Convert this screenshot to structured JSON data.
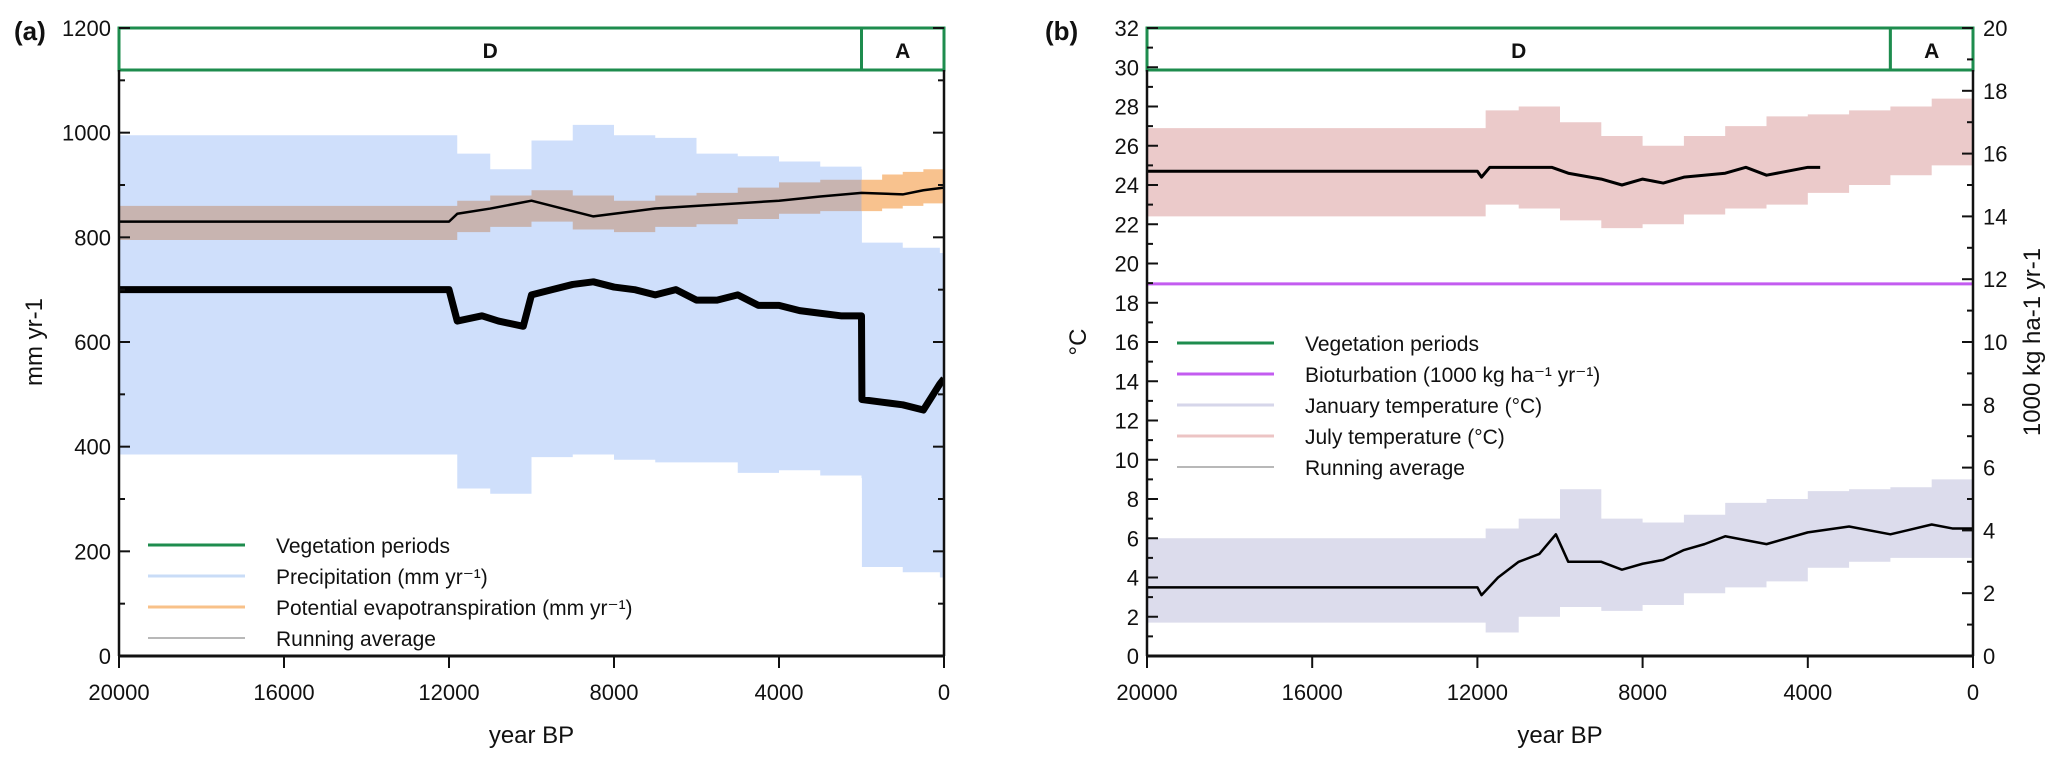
{
  "chart_data": [
    {
      "type": "area",
      "panel_label": "(a)",
      "title": "",
      "xlabel": "year BP",
      "ylabel": "mm yr-1",
      "xlim": [
        20000,
        0
      ],
      "ylim": [
        0,
        1200
      ],
      "x_ticks": [
        20000,
        16000,
        12000,
        8000,
        4000,
        0
      ],
      "x_tick_labels": [
        "20000",
        "16000",
        "12000",
        "8000",
        "4000",
        "0"
      ],
      "y_ticks": [
        0,
        200,
        400,
        600,
        800,
        1000,
        1200
      ],
      "y_tick_labels": [
        "0",
        "200",
        "400",
        "600",
        "800",
        "1000",
        "1200"
      ],
      "vegetation_periods": [
        {
          "label": "D",
          "start": 20000,
          "end": 2000
        },
        {
          "label": "A",
          "start": 2000,
          "end": 0
        }
      ],
      "legend": {
        "placement": "bottom-left",
        "entries": [
          {
            "label": "Vegetation periods",
            "color": "#1e8c4e"
          },
          {
            "label": "Precipitation (mm yr⁻¹)",
            "color": "#c9dcf7"
          },
          {
            "label": "Potential evapotranspiration (mm yr⁻¹)",
            "color": "#f8c189"
          },
          {
            "label": "Running average",
            "color": "#a0a0a0"
          }
        ]
      },
      "series": [
        {
          "name": "Precipitation (mm yr-1)",
          "kind": "band",
          "color": "#cfdffb",
          "x": [
            20000,
            12000,
            11800,
            11000,
            10000,
            9000,
            8000,
            7000,
            6000,
            5000,
            4000,
            3000,
            2000,
            1990,
            1000,
            100,
            0
          ],
          "upper": [
            995,
            995,
            960,
            930,
            985,
            1015,
            995,
            990,
            960,
            955,
            945,
            935,
            930,
            790,
            780,
            770,
            760
          ],
          "lower": [
            385,
            385,
            320,
            310,
            380,
            385,
            375,
            370,
            370,
            350,
            355,
            345,
            340,
            170,
            160,
            150,
            150
          ]
        },
        {
          "name": "Precipitation running average",
          "kind": "line",
          "color": "#000000",
          "x": [
            20000,
            12000,
            11800,
            11200,
            10800,
            10200,
            10000,
            9500,
            9000,
            8500,
            8000,
            7500,
            7000,
            6500,
            6000,
            5500,
            5000,
            4500,
            4000,
            3500,
            3000,
            2500,
            2000,
            1990,
            1500,
            1000,
            500,
            100,
            0
          ],
          "y": [
            700,
            700,
            640,
            650,
            640,
            630,
            690,
            700,
            710,
            715,
            705,
            700,
            690,
            700,
            680,
            680,
            690,
            670,
            670,
            660,
            655,
            650,
            650,
            490,
            485,
            480,
            470,
            520,
            530
          ]
        },
        {
          "name": "Potential evapotranspiration (mm yr-1)",
          "kind": "band",
          "color": "#c8b4b0",
          "x": [
            20000,
            12000,
            11800,
            11000,
            10000,
            9000,
            8000,
            7000,
            6000,
            5000,
            4000,
            3000,
            2000
          ],
          "upper": [
            860,
            860,
            870,
            880,
            890,
            880,
            870,
            880,
            885,
            895,
            905,
            910,
            915
          ],
          "lower": [
            795,
            795,
            810,
            820,
            830,
            815,
            810,
            820,
            825,
            835,
            845,
            850,
            855
          ]
        },
        {
          "name": "Potential evapotranspiration A period",
          "kind": "band",
          "color": "#f8c28e",
          "x": [
            2000,
            1500,
            1000,
            500,
            0
          ],
          "upper": [
            910,
            920,
            925,
            930,
            920
          ],
          "lower": [
            850,
            855,
            860,
            865,
            860
          ]
        },
        {
          "name": "PET running average",
          "kind": "line",
          "color": "#000000",
          "x": [
            20000,
            12000,
            11800,
            11000,
            10000,
            9000,
            8500,
            8000,
            7000,
            6000,
            5000,
            4000,
            3000,
            2000,
            1000,
            500,
            0
          ],
          "y": [
            830,
            830,
            845,
            855,
            870,
            850,
            840,
            845,
            855,
            860,
            865,
            870,
            878,
            885,
            882,
            890,
            895
          ]
        }
      ]
    },
    {
      "type": "area",
      "panel_label": "(b)",
      "title": "",
      "xlabel": "year BP",
      "ylabel": "°C",
      "y2label": "1000 kg ha-1 yr-1",
      "xlim": [
        20000,
        0
      ],
      "ylim": [
        0,
        32
      ],
      "y2lim": [
        0,
        20
      ],
      "x_ticks": [
        20000,
        16000,
        12000,
        8000,
        4000,
        0
      ],
      "x_tick_labels": [
        "20000",
        "16000",
        "12000",
        "8000",
        "4000",
        "0"
      ],
      "y_ticks": [
        0,
        2,
        4,
        6,
        8,
        10,
        12,
        14,
        16,
        18,
        20,
        22,
        24,
        26,
        28,
        30,
        32
      ],
      "y_tick_labels": [
        "0",
        "2",
        "4",
        "6",
        "8",
        "10",
        "12",
        "14",
        "16",
        "18",
        "20",
        "22",
        "24",
        "26",
        "28",
        "30",
        "32"
      ],
      "y2_ticks": [
        0,
        2,
        4,
        6,
        8,
        10,
        12,
        14,
        16,
        18,
        20
      ],
      "y2_tick_labels": [
        "0",
        "2",
        "4",
        "6",
        "8",
        "10",
        "12",
        "14",
        "16",
        "18",
        "20"
      ],
      "vegetation_periods": [
        {
          "label": "D",
          "start": 20000,
          "end": 2000
        },
        {
          "label": "A",
          "start": 2000,
          "end": 0
        }
      ],
      "legend": {
        "placement": "center-left",
        "entries": [
          {
            "label": "Vegetation periods",
            "color": "#1e8c4e"
          },
          {
            "label": "Bioturbation (1000 kg ha⁻¹ yr⁻¹)",
            "color": "#c35cf0"
          },
          {
            "label": "January temperature (°C)",
            "color": "#d6d6ea"
          },
          {
            "label": "July temperature (°C)",
            "color": "#ecc4c4"
          },
          {
            "label": "Running average",
            "color": "#a0a0a0"
          }
        ]
      },
      "series": [
        {
          "name": "July temperature (°C)",
          "kind": "band",
          "color": "#ebcaca",
          "x": [
            20000,
            12000,
            11800,
            11000,
            10000,
            9000,
            8000,
            7000,
            6000,
            5000,
            4000,
            3000,
            2000,
            1000,
            0
          ],
          "upper": [
            26.9,
            26.9,
            27.8,
            28.0,
            27.2,
            26.5,
            26.0,
            26.5,
            27.0,
            27.5,
            27.6,
            27.8,
            28.0,
            28.4,
            29.0
          ],
          "lower": [
            22.4,
            22.4,
            23.0,
            22.8,
            22.2,
            21.8,
            22.0,
            22.5,
            22.8,
            23.0,
            23.6,
            24.0,
            24.5,
            25.0,
            25.3
          ]
        },
        {
          "name": "July running average",
          "kind": "line",
          "color": "#000000",
          "x": [
            20000,
            12000,
            11900,
            11700,
            11000,
            10200,
            9800,
            9000,
            8500,
            8000,
            7500,
            7000,
            6000,
            5500,
            5000,
            4000,
            3700
          ],
          "y": [
            24.7,
            24.7,
            24.4,
            24.9,
            24.9,
            24.9,
            24.6,
            24.3,
            24.0,
            24.3,
            24.1,
            24.4,
            24.6,
            24.9,
            24.5,
            24.9,
            24.9
          ]
        },
        {
          "name": "January temperature (°C)",
          "kind": "band",
          "color": "#dcdcec",
          "x": [
            20000,
            12000,
            11800,
            11000,
            10000,
            9000,
            8000,
            7000,
            6000,
            5000,
            4000,
            3000,
            2000,
            1000,
            0
          ],
          "upper": [
            6.0,
            6.0,
            6.5,
            7.0,
            8.5,
            7.0,
            6.8,
            7.2,
            7.8,
            8.0,
            8.4,
            8.5,
            8.6,
            9.0,
            9.2
          ],
          "lower": [
            1.7,
            1.7,
            1.2,
            2.0,
            2.5,
            2.3,
            2.6,
            3.2,
            3.5,
            3.8,
            4.5,
            4.8,
            5.0,
            5.0,
            5.0
          ]
        },
        {
          "name": "January running average",
          "kind": "line",
          "color": "#000000",
          "x": [
            20000,
            12000,
            11900,
            11500,
            11000,
            10500,
            10100,
            9800,
            9000,
            8500,
            8000,
            7500,
            7000,
            6500,
            6000,
            5000,
            4000,
            3000,
            2000,
            1000,
            500,
            0
          ],
          "y": [
            3.5,
            3.5,
            3.1,
            4.0,
            4.8,
            5.2,
            6.2,
            4.8,
            4.8,
            4.4,
            4.7,
            4.9,
            5.4,
            5.7,
            6.1,
            5.7,
            6.3,
            6.6,
            6.2,
            6.7,
            6.5,
            6.5
          ]
        },
        {
          "name": "Bioturbation (1000 kg ha-1 yr-1)",
          "kind": "line",
          "axis": "right",
          "color": "#c35cf0",
          "x": [
            20000,
            0
          ],
          "y": [
            11.85,
            11.85
          ]
        }
      ]
    }
  ]
}
